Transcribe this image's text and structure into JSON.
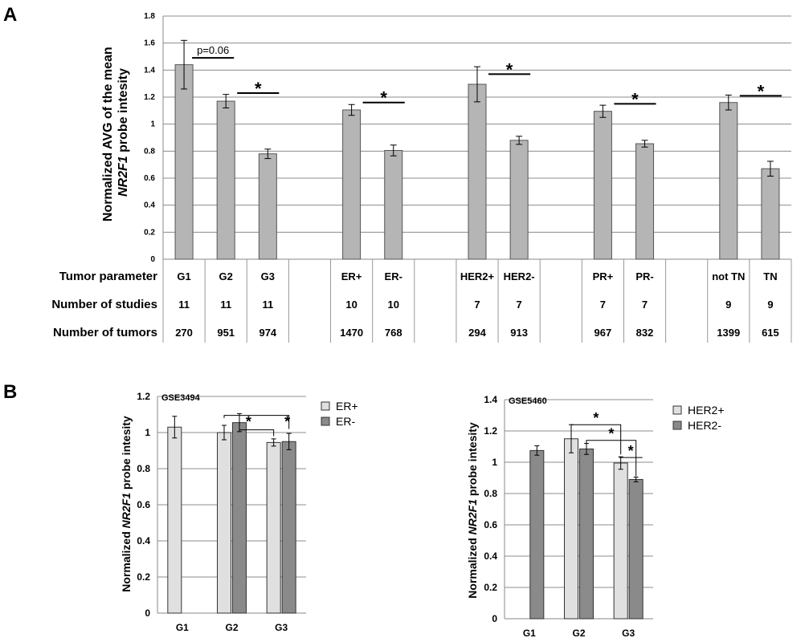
{
  "panel_a": {
    "letter": "A",
    "ylabel_line1": "Normalized AVG of the mean",
    "ylabel_gene": "NR2F1",
    "ylabel_rest": " probe intesity",
    "row_labels": [
      "Tumor parameter",
      "Number of studies",
      "Number of tumors"
    ],
    "p_note": "p=0.06",
    "star": "*"
  },
  "panel_b": {
    "letter": "B",
    "ylabel_prefix": "Normalized ",
    "ylabel_gene": "NR2F1",
    "ylabel_rest": " probe intesity"
  },
  "chart_data": [
    {
      "type": "bar",
      "ylim": [
        0,
        1.8
      ],
      "yticks": [
        "0",
        "0.2",
        "0.4",
        "0.6",
        "0.8",
        "1",
        "1.2",
        "1.4",
        "1.6",
        "1.8"
      ],
      "grid": true,
      "colors": {
        "bar": "#b5b5b5",
        "grid": "#8c8c8c"
      },
      "groups": [
        {
          "categories": [
            "G1",
            "G2",
            "G3"
          ],
          "values": [
            1.44,
            1.17,
            0.78
          ],
          "errors": [
            0.18,
            0.05,
            0.035
          ],
          "studies": [
            "11",
            "11",
            "11"
          ],
          "tumors": [
            "270",
            "951",
            "974"
          ]
        },
        {
          "categories": [
            "ER+",
            "ER-"
          ],
          "values": [
            1.105,
            0.805
          ],
          "errors": [
            0.04,
            0.04
          ],
          "studies": [
            "10",
            "10"
          ],
          "tumors": [
            "1470",
            "768"
          ]
        },
        {
          "categories": [
            "HER2+",
            "HER2-"
          ],
          "values": [
            1.295,
            0.88
          ],
          "errors": [
            0.13,
            0.03
          ],
          "studies": [
            "7",
            "7"
          ],
          "tumors": [
            "294",
            "913"
          ]
        },
        {
          "categories": [
            "PR+",
            "PR-"
          ],
          "values": [
            1.095,
            0.855
          ],
          "errors": [
            0.045,
            0.025
          ],
          "studies": [
            "7",
            "7"
          ],
          "tumors": [
            "967",
            "832"
          ]
        },
        {
          "categories": [
            "not TN",
            "TN"
          ],
          "values": [
            1.16,
            0.67
          ],
          "errors": [
            0.055,
            0.055
          ],
          "studies": [
            "9",
            "9"
          ],
          "tumors": [
            "1399",
            "615"
          ]
        }
      ]
    },
    {
      "type": "bar",
      "title": "GSE3494",
      "categories": [
        "G1",
        "G2",
        "G3"
      ],
      "ylim": [
        0,
        1.2
      ],
      "yticks": [
        "0",
        "0.2",
        "0.4",
        "0.6",
        "0.8",
        "1",
        "1.2"
      ],
      "grid": true,
      "legend_position": "top-right",
      "series": [
        {
          "name": "ER+",
          "color": "#e0e0e0",
          "values": [
            1.03,
            1.0,
            0.945
          ],
          "errors": [
            0.06,
            0.04,
            0.02
          ]
        },
        {
          "name": "ER-",
          "color": "#8a8a8a",
          "values": [
            null,
            1.055,
            0.95
          ],
          "errors": [
            null,
            0.05,
            0.045
          ]
        }
      ]
    },
    {
      "type": "bar",
      "title": "GSE5460",
      "categories": [
        "G1",
        "G2",
        "G3"
      ],
      "ylim": [
        0,
        1.4
      ],
      "yticks": [
        "0",
        "0.2",
        "0.4",
        "0.6",
        "0.8",
        "1",
        "1.2",
        "1.4"
      ],
      "grid": true,
      "legend_position": "top-right",
      "series": [
        {
          "name": "HER2+",
          "color": "#e0e0e0",
          "values": [
            null,
            1.15,
            0.995
          ],
          "errors": [
            null,
            0.09,
            0.04
          ]
        },
        {
          "name": "HER2-",
          "color": "#8a8a8a",
          "values": [
            1.075,
            1.085,
            0.89
          ],
          "errors": [
            0.03,
            0.035,
            0.015
          ]
        }
      ]
    }
  ]
}
